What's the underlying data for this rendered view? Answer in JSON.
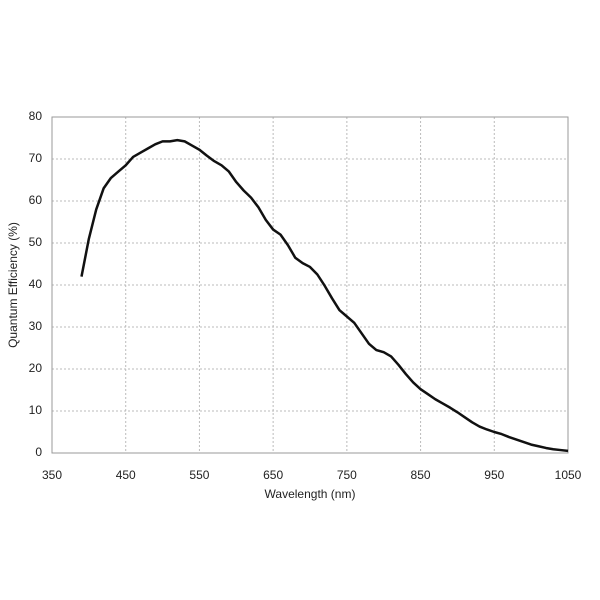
{
  "chart_data": {
    "type": "line",
    "x_label": "Wavelength (nm)",
    "y_label": "Quantum Efficiency (%)",
    "x": [
      390,
      400,
      410,
      420,
      430,
      440,
      450,
      460,
      470,
      480,
      490,
      500,
      510,
      520,
      530,
      540,
      550,
      560,
      570,
      580,
      590,
      600,
      610,
      620,
      630,
      640,
      650,
      660,
      670,
      680,
      690,
      700,
      710,
      720,
      730,
      740,
      750,
      760,
      770,
      780,
      790,
      800,
      810,
      820,
      830,
      840,
      850,
      860,
      870,
      880,
      890,
      900,
      910,
      920,
      930,
      940,
      950,
      960,
      970,
      980,
      990,
      1000,
      1010,
      1020,
      1030,
      1040,
      1050
    ],
    "series": [
      {
        "color": "#111111",
        "values": [
          42,
          51,
          58,
          63,
          65.5,
          67,
          68.5,
          70.5,
          71.5,
          72.5,
          73.5,
          74.2,
          74.2,
          74.5,
          74.2,
          73.2,
          72.2,
          70.8,
          69.5,
          68.5,
          67,
          64.5,
          62.5,
          60.8,
          58.5,
          55.5,
          53.2,
          52,
          49.5,
          46.5,
          45.2,
          44.3,
          42.5,
          39.8,
          36.8,
          34,
          32.5,
          31,
          28.5,
          26,
          24.5,
          24,
          23,
          21,
          18.8,
          16.8,
          15.2,
          14,
          12.8,
          11.8,
          10.8,
          9.7,
          8.5,
          7.3,
          6.3,
          5.6,
          5,
          4.5,
          3.8,
          3.2,
          2.6,
          2,
          1.6,
          1.2,
          0.9,
          0.7,
          0.5
        ]
      }
    ],
    "xlim": [
      350,
      1050
    ],
    "xticks": [
      350,
      450,
      550,
      650,
      750,
      850,
      950,
      1050
    ],
    "ylim": [
      0,
      80
    ],
    "yticks": [
      0,
      10,
      20,
      30,
      40,
      50,
      60,
      70,
      80
    ],
    "grid": true
  }
}
